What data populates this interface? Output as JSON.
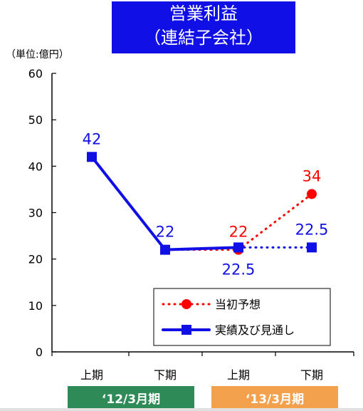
{
  "chart_data": {
    "type": "line",
    "title": "営業利益",
    "subtitle": "（連結子会社）",
    "ylabel": "（単位:億円）",
    "ylim": [
      0,
      60
    ],
    "yticks": [
      0,
      10,
      20,
      30,
      40,
      50,
      60
    ],
    "categories": [
      "上期",
      "下期",
      "上期",
      "下期"
    ],
    "period_groups": [
      {
        "label": "‘12/3月期",
        "color": "#2e8b57"
      },
      {
        "label": "‘13/3月期",
        "color": "#f4a14d"
      }
    ],
    "series": [
      {
        "name": "当初予想",
        "color": "#ff0000",
        "line_style": "dotted",
        "marker": "circle",
        "segments": [
          {
            "x": [
              1,
              2
            ],
            "values": [
              22,
              22
            ]
          },
          {
            "x": [
              2,
              3
            ],
            "values": [
              22,
              34
            ]
          }
        ],
        "labels": [
          {
            "x": 2,
            "value": 22,
            "text": "22",
            "pos": "above"
          },
          {
            "x": 3,
            "value": 34,
            "text": "34",
            "pos": "above"
          }
        ]
      },
      {
        "name": "実績及び見通し",
        "color": "#1010e6",
        "segments": [
          {
            "x": [
              0,
              1,
              2
            ],
            "values": [
              42,
              22,
              22.5
            ],
            "line_style": "solid"
          },
          {
            "x": [
              2,
              3
            ],
            "values": [
              22.5,
              22.5
            ],
            "line_style": "dotted"
          }
        ],
        "marker": "square",
        "labels": [
          {
            "x": 0,
            "value": 42,
            "text": "42",
            "pos": "above"
          },
          {
            "x": 1,
            "value": 22,
            "text": "22",
            "pos": "above"
          },
          {
            "x": 2,
            "value": 22.5,
            "text": "22.5",
            "pos": "below"
          },
          {
            "x": 3,
            "value": 22.5,
            "text": "22.5",
            "pos": "above"
          }
        ]
      }
    ],
    "legend": {
      "placement": "bottom-right"
    },
    "grid": false
  }
}
